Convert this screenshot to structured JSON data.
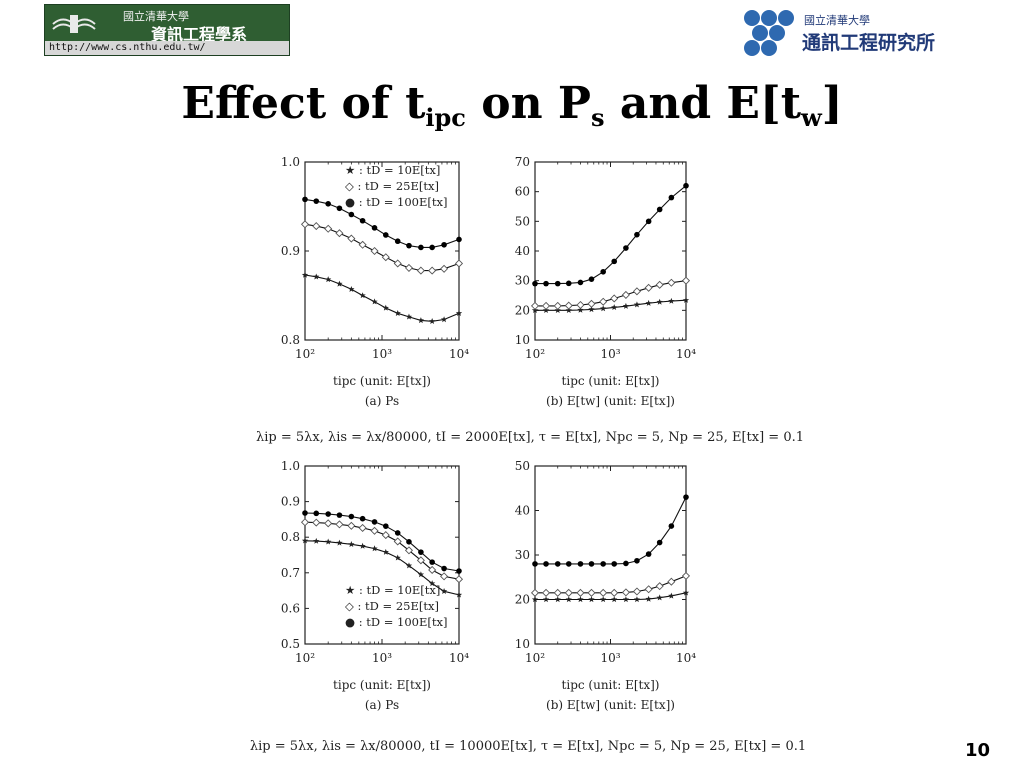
{
  "header": {
    "left_logo": {
      "university": "國立清華大學",
      "department": "資訊工程學系",
      "url": "http://www.cs.nthu.edu.tw/"
    },
    "right_logo": {
      "university": "國立清華大學",
      "institute": "通訊工程研究所"
    }
  },
  "slide": {
    "title_parts": [
      "Effect of t",
      "ipc",
      " on P",
      "s",
      " and E[t",
      "w",
      "]"
    ],
    "page_number": "10"
  },
  "chart_data": [
    {
      "type": "line",
      "panel": "top-left",
      "ylim": [
        0.8,
        1.0
      ],
      "yticks": [
        "0.8",
        "0.9",
        "1.0"
      ],
      "xscale": "log",
      "xticks": [
        "10²",
        "10³",
        "10⁴"
      ],
      "xlabel": "tipc (unit: E[tx])",
      "caption": "(a) Ps",
      "legend": {
        "placement": "top-left",
        "entries": [
          "★ : tD = 10E[tx]",
          "◇ : tD = 25E[tx]",
          "● : tD = 100E[tx]"
        ]
      },
      "x": [
        100,
        140,
        200,
        280,
        400,
        560,
        800,
        1120,
        1600,
        2240,
        3200,
        4480,
        6400,
        10000
      ],
      "series": [
        {
          "marker": "star",
          "values": [
            0.873,
            0.871,
            0.868,
            0.863,
            0.857,
            0.85,
            0.843,
            0.836,
            0.83,
            0.826,
            0.822,
            0.821,
            0.823,
            0.83
          ]
        },
        {
          "marker": "diamond",
          "values": [
            0.93,
            0.928,
            0.925,
            0.92,
            0.914,
            0.907,
            0.9,
            0.893,
            0.886,
            0.881,
            0.878,
            0.878,
            0.88,
            0.886
          ]
        },
        {
          "marker": "dot",
          "values": [
            0.958,
            0.956,
            0.953,
            0.948,
            0.941,
            0.934,
            0.926,
            0.918,
            0.911,
            0.906,
            0.904,
            0.904,
            0.907,
            0.913
          ]
        }
      ]
    },
    {
      "type": "line",
      "panel": "top-right",
      "ylim": [
        10,
        70
      ],
      "yticks": [
        "10",
        "20",
        "30",
        "40",
        "50",
        "60",
        "70"
      ],
      "xscale": "log",
      "xticks": [
        "10²",
        "10³",
        "10⁴"
      ],
      "xlabel": "tipc (unit: E[tx])",
      "caption": "(b) E[tw] (unit: E[tx])",
      "x": [
        100,
        140,
        200,
        280,
        400,
        560,
        800,
        1120,
        1600,
        2240,
        3200,
        4480,
        6400,
        10000
      ],
      "series": [
        {
          "marker": "star",
          "values": [
            20,
            20,
            20,
            20,
            20.1,
            20.3,
            20.6,
            21,
            21.4,
            21.9,
            22.4,
            22.8,
            23.1,
            23.4
          ]
        },
        {
          "marker": "diamond",
          "values": [
            21.5,
            21.5,
            21.5,
            21.6,
            21.8,
            22.2,
            22.9,
            24,
            25.2,
            26.4,
            27.6,
            28.6,
            29.3,
            30
          ]
        },
        {
          "marker": "dot",
          "values": [
            29,
            29,
            29,
            29.1,
            29.4,
            30.5,
            33,
            36.5,
            41,
            45.5,
            50,
            54,
            58,
            62
          ]
        }
      ]
    },
    {
      "type": "line",
      "panel": "bottom-left",
      "ylim": [
        0.5,
        1.0
      ],
      "yticks": [
        "0.5",
        "0.6",
        "0.7",
        "0.8",
        "0.9",
        "1.0"
      ],
      "xscale": "log",
      "xticks": [
        "10²",
        "10³",
        "10⁴"
      ],
      "xlabel": "tipc (unit: E[tx])",
      "caption": "(a) Ps",
      "legend": {
        "placement": "bottom-left",
        "entries": [
          "★ : tD = 10E[tx]",
          "◇ : tD = 25E[tx]",
          "● : tD = 100E[tx]"
        ]
      },
      "x": [
        100,
        140,
        200,
        280,
        400,
        560,
        800,
        1120,
        1600,
        2240,
        3200,
        4480,
        6400,
        10000
      ],
      "series": [
        {
          "marker": "star",
          "values": [
            0.79,
            0.789,
            0.787,
            0.784,
            0.78,
            0.775,
            0.768,
            0.758,
            0.742,
            0.72,
            0.695,
            0.67,
            0.648,
            0.638
          ]
        },
        {
          "marker": "diamond",
          "values": [
            0.842,
            0.841,
            0.839,
            0.836,
            0.832,
            0.826,
            0.818,
            0.806,
            0.788,
            0.763,
            0.735,
            0.708,
            0.69,
            0.682
          ]
        },
        {
          "marker": "dot",
          "values": [
            0.868,
            0.867,
            0.865,
            0.862,
            0.858,
            0.852,
            0.843,
            0.831,
            0.812,
            0.787,
            0.758,
            0.73,
            0.712,
            0.705
          ]
        }
      ]
    },
    {
      "type": "line",
      "panel": "bottom-right",
      "ylim": [
        10,
        50
      ],
      "yticks": [
        "10",
        "20",
        "30",
        "40",
        "50"
      ],
      "xscale": "log",
      "xticks": [
        "10²",
        "10³",
        "10⁴"
      ],
      "xlabel": "tipc (unit: E[tx])",
      "caption": "(b) E[tw] (unit: E[tx])",
      "x": [
        100,
        140,
        200,
        280,
        400,
        560,
        800,
        1120,
        1600,
        2240,
        3200,
        4480,
        6400,
        10000
      ],
      "series": [
        {
          "marker": "star",
          "values": [
            20,
            20,
            20,
            20,
            20,
            20,
            20,
            20,
            20,
            20,
            20.1,
            20.4,
            20.8,
            21.5
          ]
        },
        {
          "marker": "diamond",
          "values": [
            21.5,
            21.5,
            21.5,
            21.5,
            21.5,
            21.5,
            21.5,
            21.5,
            21.6,
            21.8,
            22.3,
            23,
            24,
            25.3
          ]
        },
        {
          "marker": "dot",
          "values": [
            28,
            28,
            28,
            28,
            28,
            28,
            28,
            28,
            28.1,
            28.7,
            30.2,
            32.8,
            36.5,
            43
          ]
        }
      ]
    }
  ],
  "params": {
    "top": "λip = 5λx, λis = λx/80000, tI = 2000E[tx], τ = E[tx], Npc = 5, Np = 25, E[tx] = 0.1",
    "bottom": "λip = 5λx, λis = λx/80000, tI = 10000E[tx], τ = E[tx], Npc = 5, Np = 25, E[tx] = 0.1"
  }
}
